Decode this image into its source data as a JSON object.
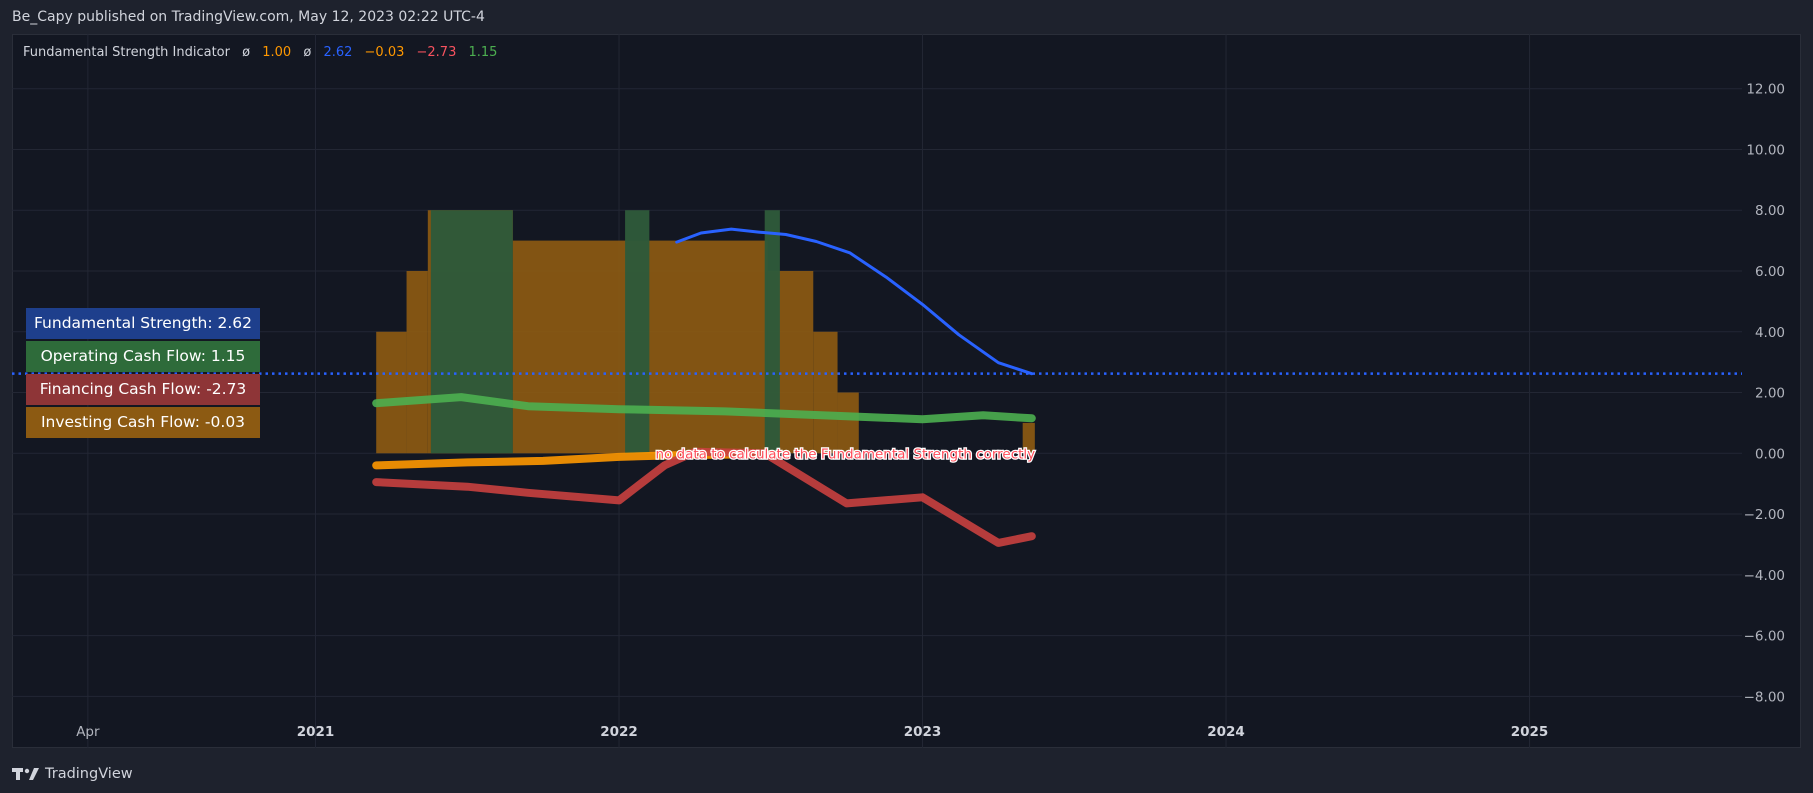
{
  "header": {
    "published_text": "Be_Capy published on TradingView.com, May 12, 2023 02:22 UTC-4"
  },
  "indicator_legend": {
    "name": "Fundamental Strength Indicator",
    "sym1": "ø",
    "val1": "1.00",
    "sym2": "ø",
    "val2": "2.62",
    "val3": "−0.03",
    "val4": "−2.73",
    "val5": "1.15",
    "colors": {
      "name": "#d1d4dc",
      "val1": "#ff9800",
      "val2": "#2962ff",
      "val3": "#ff9800",
      "val4": "#f7525f",
      "val5": "#4caf50"
    }
  },
  "legend_boxes": [
    {
      "label": "Fundamental Strength: 2.62",
      "color": "#1e3f8c"
    },
    {
      "label": "Operating Cash Flow: 1.15",
      "color": "#2e6b3a"
    },
    {
      "label": "Financing Cash Flow: -2.73",
      "color": "#8e3537"
    },
    {
      "label": "Investing Cash Flow: -0.03",
      "color": "#8c5a12"
    }
  ],
  "annotation": {
    "text": "no data to calculate the Fundamental Strength correctly",
    "color": "#ff4d5a"
  },
  "footer": {
    "brand": "TradingView"
  },
  "chart_data": {
    "type": "line",
    "ylim": [
      -9.7,
      13.8
    ],
    "xlim": [
      2020.0,
      2025.7
    ],
    "y_ticks": [
      {
        "value": 12,
        "label": "12.00"
      },
      {
        "value": 10,
        "label": "10.00"
      },
      {
        "value": 8,
        "label": "8.00"
      },
      {
        "value": 6,
        "label": "6.00"
      },
      {
        "value": 4,
        "label": "4.00"
      },
      {
        "value": 2,
        "label": "2.00"
      },
      {
        "value": 0,
        "label": "0.00"
      },
      {
        "value": -2,
        "label": "−2.00"
      },
      {
        "value": -4,
        "label": "−4.00"
      },
      {
        "value": -6,
        "label": "−6.00"
      },
      {
        "value": -8,
        "label": "−8.00"
      }
    ],
    "x_ticks": [
      {
        "value": 2020.25,
        "label": "Apr",
        "bold": false
      },
      {
        "value": 2021.0,
        "label": "2021",
        "bold": true
      },
      {
        "value": 2022.0,
        "label": "2022",
        "bold": true
      },
      {
        "value": 2023.0,
        "label": "2023",
        "bold": true
      },
      {
        "value": 2024.0,
        "label": "2024",
        "bold": true
      },
      {
        "value": 2025.0,
        "label": "2025",
        "bold": true
      }
    ],
    "reference_line": {
      "value": 2.62,
      "color": "#2962ff",
      "style": "dotted"
    },
    "orange_steps": [
      {
        "x0": 2021.2,
        "x1": 2021.3,
        "top": 4.0
      },
      {
        "x0": 2021.3,
        "x1": 2021.37,
        "top": 6.0
      },
      {
        "x0": 2021.37,
        "x1": 2021.65,
        "top": 8.0
      },
      {
        "x0": 2021.65,
        "x1": 2022.49,
        "top": 7.0
      },
      {
        "x0": 2022.49,
        "x1": 2022.64,
        "top": 6.0
      },
      {
        "x0": 2022.64,
        "x1": 2022.72,
        "top": 4.0
      },
      {
        "x0": 2022.72,
        "x1": 2022.79,
        "top": 2.0
      },
      {
        "x0": 2023.33,
        "x1": 2023.37,
        "top": 1.0
      }
    ],
    "green_bars": [
      {
        "x0": 2021.38,
        "x1": 2021.65,
        "top": 8.0
      },
      {
        "x0": 2022.02,
        "x1": 2022.1,
        "top": 8.0
      },
      {
        "x0": 2022.48,
        "x1": 2022.53,
        "top": 8.0
      }
    ],
    "series": [
      {
        "color": "#2962ff",
        "width": 3,
        "points": [
          [
            2022.19,
            6.95
          ],
          [
            2022.27,
            7.25
          ],
          [
            2022.37,
            7.38
          ],
          [
            2022.46,
            7.28
          ],
          [
            2022.55,
            7.2
          ],
          [
            2022.65,
            6.97
          ],
          [
            2022.76,
            6.6
          ],
          [
            2022.88,
            5.8
          ],
          [
            2023.0,
            4.9
          ],
          [
            2023.12,
            3.9
          ],
          [
            2023.25,
            2.98
          ],
          [
            2023.36,
            2.62
          ]
        ]
      },
      {
        "color": "#4caf50",
        "width": 8,
        "points": [
          [
            2021.2,
            1.65
          ],
          [
            2021.48,
            1.85
          ],
          [
            2021.7,
            1.55
          ],
          [
            2022.0,
            1.45
          ],
          [
            2022.35,
            1.38
          ],
          [
            2022.75,
            1.22
          ],
          [
            2023.0,
            1.12
          ],
          [
            2023.2,
            1.25
          ],
          [
            2023.36,
            1.15
          ]
        ]
      },
      {
        "color": "#ff9800",
        "width": 8,
        "points": [
          [
            2021.2,
            -0.4
          ],
          [
            2021.5,
            -0.3
          ],
          [
            2021.75,
            -0.25
          ],
          [
            2022.0,
            -0.12
          ],
          [
            2022.2,
            -0.06
          ],
          [
            2022.5,
            -0.03
          ]
        ]
      },
      {
        "color": "#c9403f",
        "width": 8,
        "points": [
          [
            2021.2,
            -0.95
          ],
          [
            2021.5,
            -1.1
          ],
          [
            2021.7,
            -1.3
          ],
          [
            2022.0,
            -1.55
          ],
          [
            2022.15,
            -0.4
          ],
          [
            2022.25,
            0.05
          ],
          [
            2022.48,
            0.0
          ],
          [
            2022.75,
            -1.65
          ],
          [
            2023.0,
            -1.45
          ],
          [
            2023.25,
            -2.95
          ],
          [
            2023.36,
            -2.73
          ]
        ]
      }
    ]
  }
}
